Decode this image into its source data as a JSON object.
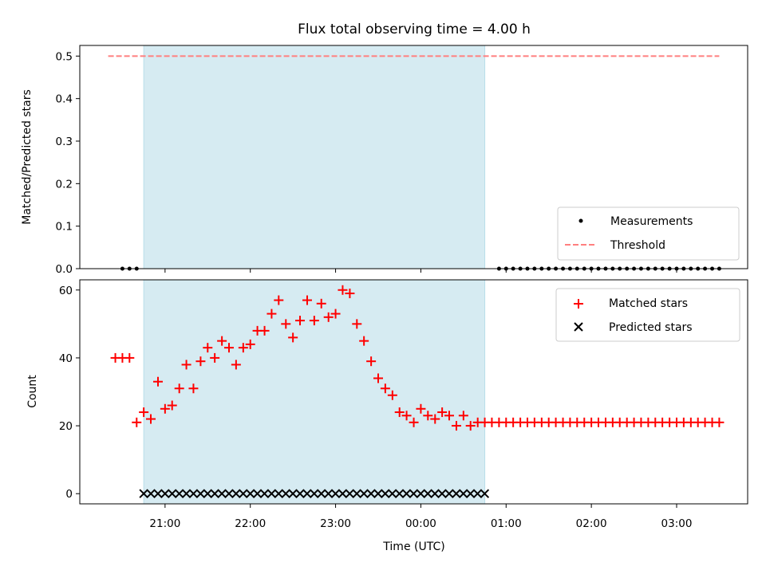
{
  "chart_data": [
    {
      "type": "scatter",
      "title": "Flux total observing time = 4.00 h",
      "xlabel": "",
      "ylabel": "Matched/Predicted stars",
      "ylim": [
        0,
        0.525
      ],
      "yticks": [
        "0.0",
        "0.1",
        "0.2",
        "0.3",
        "0.4",
        "0.5"
      ],
      "xlim_hours": [
        20.0,
        27.833
      ],
      "shaded_span_hours": [
        20.75,
        24.75
      ],
      "shaded_color": "#add8e6",
      "threshold": 0.5,
      "threshold_color": "#ff7f7f",
      "legend_position": "lower-right",
      "series": [
        {
          "name": "Measurements",
          "color": "#000000",
          "marker": "dot",
          "x_hours": [
            20.5,
            20.583,
            20.667,
            24.917,
            25.0,
            25.083,
            25.167,
            25.25,
            25.333,
            25.417,
            25.5,
            25.583,
            25.667,
            25.75,
            25.833,
            25.917,
            26.0,
            26.083,
            26.167,
            26.25,
            26.333,
            26.417,
            26.5,
            26.583,
            26.667,
            26.75,
            26.833,
            26.917,
            27.0,
            27.083,
            27.167,
            27.25,
            27.333,
            27.417,
            27.5
          ],
          "y_value": 0
        },
        {
          "name": "Threshold",
          "color": "#ff7f7f",
          "style": "dashed",
          "x_hours": [
            20.333,
            27.5
          ],
          "y": [
            0.5,
            0.5
          ]
        }
      ]
    },
    {
      "type": "scatter",
      "title": "",
      "xlabel": "Time (UTC)",
      "ylabel": "Count",
      "ylim": [
        -3,
        63
      ],
      "yticks": [
        "0",
        "20",
        "40",
        "60"
      ],
      "xticks": [
        "21:00",
        "22:00",
        "23:00",
        "00:00",
        "01:00",
        "02:00",
        "03:00"
      ],
      "xlim_hours": [
        20.0,
        27.833
      ],
      "shaded_span_hours": [
        20.75,
        24.75
      ],
      "legend_position": "top-right",
      "series": [
        {
          "name": "Matched stars",
          "color": "#ff0000",
          "marker": "plus",
          "x_hours": [
            20.417,
            20.5,
            20.583,
            20.667,
            20.75,
            20.833,
            20.917,
            21.0,
            21.083,
            21.167,
            21.25,
            21.333,
            21.417,
            21.5,
            21.583,
            21.667,
            21.75,
            21.833,
            21.917,
            22.0,
            22.083,
            22.167,
            22.25,
            22.333,
            22.417,
            22.5,
            22.583,
            22.667,
            22.75,
            22.833,
            22.917,
            23.0,
            23.083,
            23.167,
            23.25,
            23.333,
            23.417,
            23.5,
            23.583,
            23.667,
            23.75,
            23.833,
            23.917,
            24.0,
            24.083,
            24.167,
            24.25,
            24.333,
            24.417,
            24.5,
            24.583,
            24.667,
            24.75,
            24.833,
            24.917,
            25.0,
            25.083,
            25.167,
            25.25,
            25.333,
            25.417,
            25.5,
            25.583,
            25.667,
            25.75,
            25.833,
            25.917,
            26.0,
            26.083,
            26.167,
            26.25,
            26.333,
            26.417,
            26.5,
            26.583,
            26.667,
            26.75,
            26.833,
            26.917,
            27.0,
            27.083,
            27.167,
            27.25,
            27.333,
            27.417,
            27.5
          ],
          "y": [
            40,
            40,
            40,
            21,
            24,
            22,
            33,
            25,
            26,
            31,
            38,
            31,
            39,
            43,
            40,
            45,
            43,
            38,
            43,
            44,
            48,
            48,
            53,
            57,
            50,
            46,
            51,
            57,
            51,
            56,
            52,
            53,
            60,
            59,
            50,
            45,
            39,
            34,
            31,
            29,
            24,
            23,
            21,
            25,
            23,
            22,
            24,
            23,
            20,
            23,
            20,
            21,
            21,
            21,
            21,
            21,
            21,
            21,
            21,
            21,
            21,
            21,
            21,
            21,
            21,
            21,
            21,
            21,
            21,
            21,
            21,
            21,
            21,
            21,
            21,
            21,
            21,
            21,
            21,
            21,
            21,
            21,
            21,
            21,
            21,
            21
          ]
        },
        {
          "name": "Predicted stars",
          "color": "#000000",
          "marker": "x",
          "x_start_hours": 20.75,
          "x_end_hours": 24.75,
          "x_step_hours": 0.0833,
          "y_value": 0
        }
      ]
    }
  ]
}
